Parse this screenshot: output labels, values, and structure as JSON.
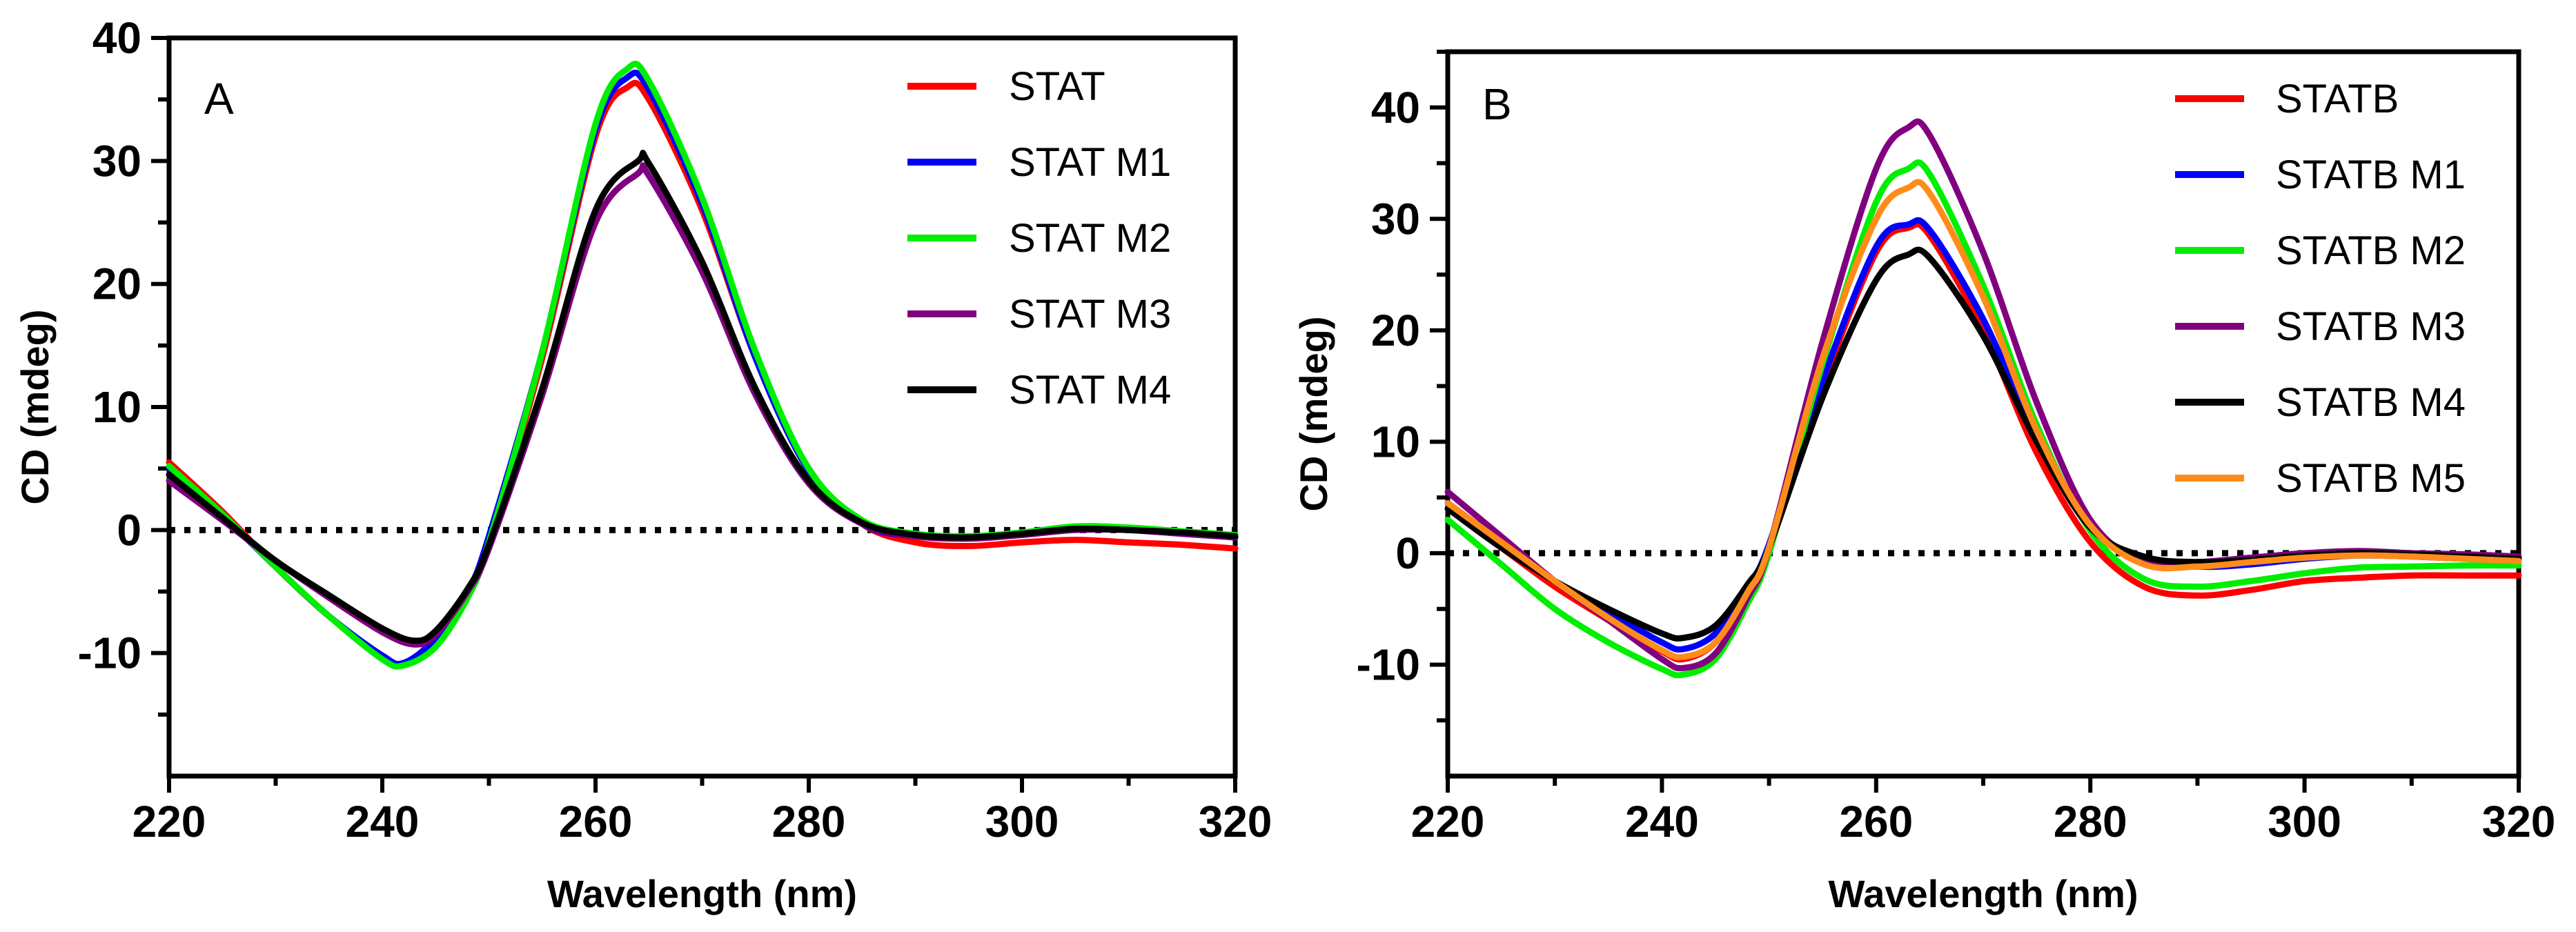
{
  "chart_data": [
    {
      "type": "line",
      "panel_label": "A",
      "xlabel": "Wavelength (nm)",
      "ylabel": "CD (mdeg)",
      "xlim": [
        220,
        320
      ],
      "ylim": [
        -20,
        40
      ],
      "xticks": [
        220,
        240,
        260,
        280,
        300,
        320
      ],
      "yticks": [
        -10,
        0,
        10,
        20,
        30,
        40
      ],
      "zero_line": "dotted",
      "legend_position": "top-right",
      "series": [
        {
          "name": "STAT",
          "color": "#ff0000",
          "x": [
            220,
            225,
            230,
            235,
            240,
            242,
            245,
            248,
            250,
            255,
            260,
            263,
            265,
            270,
            275,
            280,
            285,
            290,
            295,
            300,
            305,
            310,
            315,
            320
          ],
          "y": [
            5.5,
            1.5,
            -3,
            -7,
            -10.3,
            -11,
            -9,
            -5,
            -1,
            14,
            32,
            36,
            35,
            26,
            14,
            5,
            0.5,
            -1,
            -1.3,
            -1,
            -0.8,
            -1,
            -1.2,
            -1.5
          ]
        },
        {
          "name": "STAT M1",
          "color": "#0000ff",
          "x": [
            220,
            225,
            230,
            235,
            240,
            242,
            245,
            248,
            250,
            255,
            260,
            263,
            265,
            270,
            275,
            280,
            285,
            290,
            295,
            300,
            305,
            310,
            315,
            320
          ],
          "y": [
            5,
            1.2,
            -3,
            -7,
            -10.2,
            -10.8,
            -8.8,
            -5,
            -0.5,
            14.5,
            32.5,
            36.8,
            35.8,
            26.5,
            14,
            4.8,
            0.5,
            -0.5,
            -0.6,
            -0.2,
            0.2,
            0,
            -0.3,
            -0.6
          ]
        },
        {
          "name": "STAT M2",
          "color": "#00ee00",
          "x": [
            220,
            225,
            230,
            235,
            240,
            242,
            245,
            248,
            250,
            255,
            260,
            263,
            265,
            270,
            275,
            280,
            285,
            290,
            295,
            300,
            305,
            310,
            315,
            320
          ],
          "y": [
            5.2,
            1.3,
            -3,
            -7,
            -10.5,
            -11,
            -9.5,
            -5.5,
            -1,
            14.5,
            33,
            37.5,
            36.5,
            27,
            14.5,
            5,
            0.8,
            -0.3,
            -0.5,
            -0.2,
            0.3,
            0.2,
            -0.1,
            -0.4
          ]
        },
        {
          "name": "STAT M3",
          "color": "#800080",
          "x": [
            220,
            225,
            230,
            235,
            240,
            243,
            245,
            248,
            250,
            255,
            260,
            264,
            265,
            270,
            275,
            280,
            285,
            290,
            295,
            300,
            305,
            310,
            315,
            320
          ],
          "y": [
            4,
            0.8,
            -2.5,
            -5.5,
            -8.3,
            -9.3,
            -8.5,
            -5,
            -1.5,
            11,
            25,
            29,
            28.8,
            21,
            11,
            3.8,
            0.5,
            -0.5,
            -0.7,
            -0.4,
            0,
            0,
            -0.3,
            -0.6
          ]
        },
        {
          "name": "STAT M4",
          "color": "#000000",
          "x": [
            220,
            225,
            230,
            235,
            240,
            243,
            245,
            248,
            250,
            255,
            260,
            264,
            265,
            270,
            275,
            280,
            285,
            290,
            295,
            300,
            305,
            310,
            315,
            320
          ],
          "y": [
            4.5,
            1,
            -2.5,
            -5.3,
            -8,
            -9,
            -8.2,
            -4.8,
            -1.2,
            11.5,
            26,
            30,
            29.8,
            21.8,
            11.5,
            4,
            0.6,
            -0.4,
            -0.6,
            -0.3,
            0.1,
            0,
            -0.2,
            -0.5
          ]
        }
      ]
    },
    {
      "type": "line",
      "panel_label": "B",
      "xlabel": "Wavelength (nm)",
      "ylabel": "CD (mdeg)",
      "xlim": [
        220,
        320
      ],
      "ylim": [
        -20,
        45
      ],
      "xticks": [
        220,
        240,
        260,
        280,
        300,
        320
      ],
      "yticks": [
        -10,
        0,
        10,
        20,
        30,
        40
      ],
      "zero_line": "dotted",
      "legend_position": "top-right",
      "series": [
        {
          "name": "STATB",
          "color": "#ff0000",
          "x": [
            220,
            225,
            230,
            235,
            240,
            242,
            245,
            248,
            250,
            255,
            260,
            263,
            265,
            270,
            275,
            280,
            285,
            290,
            295,
            300,
            305,
            310,
            315,
            320
          ],
          "y": [
            4,
            0.5,
            -3,
            -6,
            -8.8,
            -9.5,
            -8,
            -3.5,
            0.5,
            15,
            27,
            29.2,
            28.5,
            20,
            9,
            1,
            -3,
            -3.8,
            -3.3,
            -2.5,
            -2.2,
            -2,
            -2,
            -2
          ]
        },
        {
          "name": "STATB M1",
          "color": "#0000ff",
          "x": [
            220,
            225,
            230,
            235,
            240,
            242,
            245,
            248,
            250,
            255,
            260,
            263,
            265,
            270,
            275,
            280,
            285,
            290,
            295,
            300,
            305,
            310,
            315,
            320
          ],
          "y": [
            4.5,
            1,
            -2.5,
            -5.3,
            -8,
            -8.6,
            -7.2,
            -3,
            0.8,
            15.5,
            27.5,
            29.5,
            29,
            21,
            10.5,
            2.5,
            -0.5,
            -1.2,
            -1,
            -0.5,
            -0.2,
            -0.3,
            -0.5,
            -0.7
          ]
        },
        {
          "name": "STATB M2",
          "color": "#00ee00",
          "x": [
            220,
            225,
            230,
            235,
            240,
            242,
            245,
            248,
            250,
            255,
            260,
            263,
            265,
            270,
            275,
            280,
            285,
            290,
            295,
            300,
            305,
            310,
            315,
            320
          ],
          "y": [
            3,
            -1,
            -5,
            -8,
            -10.4,
            -10.9,
            -9.5,
            -4.5,
            0,
            17,
            31.5,
            34.5,
            34,
            24,
            11.5,
            2,
            -2.3,
            -3,
            -2.5,
            -1.8,
            -1.3,
            -1.2,
            -1.1,
            -1.1
          ]
        },
        {
          "name": "STATB M3",
          "color": "#800080",
          "x": [
            220,
            225,
            230,
            235,
            240,
            242,
            245,
            248,
            250,
            255,
            260,
            263,
            265,
            270,
            275,
            280,
            285,
            290,
            295,
            300,
            305,
            310,
            315,
            320
          ],
          "y": [
            5.5,
            1.5,
            -2.5,
            -6,
            -9.5,
            -10.3,
            -9,
            -4,
            0.5,
            19,
            34.5,
            38.2,
            37.5,
            27,
            13.5,
            3,
            -0.8,
            -0.8,
            -0.4,
            0,
            0.2,
            0,
            -0.1,
            -0.3
          ]
        },
        {
          "name": "STATB M4",
          "color": "#000000",
          "x": [
            220,
            225,
            230,
            235,
            240,
            242,
            245,
            248,
            250,
            255,
            260,
            263,
            265,
            270,
            275,
            280,
            285,
            290,
            295,
            300,
            305,
            310,
            315,
            320
          ],
          "y": [
            4,
            0.5,
            -2.5,
            -5,
            -7.2,
            -7.6,
            -6.5,
            -2.8,
            0.5,
            14,
            24.5,
            26.8,
            26.5,
            19.5,
            10,
            2.3,
            -0.3,
            -0.8,
            -0.6,
            -0.2,
            0,
            -0.1,
            -0.3,
            -0.5
          ]
        },
        {
          "name": "STATB M5",
          "color": "#ff8c1a",
          "x": [
            220,
            225,
            230,
            235,
            240,
            242,
            245,
            248,
            250,
            255,
            260,
            263,
            265,
            270,
            275,
            280,
            285,
            290,
            295,
            300,
            305,
            310,
            315,
            320
          ],
          "y": [
            4.5,
            1,
            -2.5,
            -5.8,
            -8.7,
            -9.3,
            -8,
            -3.5,
            0.5,
            17.5,
            30,
            32.8,
            32.3,
            23,
            11,
            2.5,
            -1,
            -1.2,
            -0.8,
            -0.4,
            -0.2,
            -0.3,
            -0.5,
            -0.7
          ]
        }
      ]
    }
  ]
}
